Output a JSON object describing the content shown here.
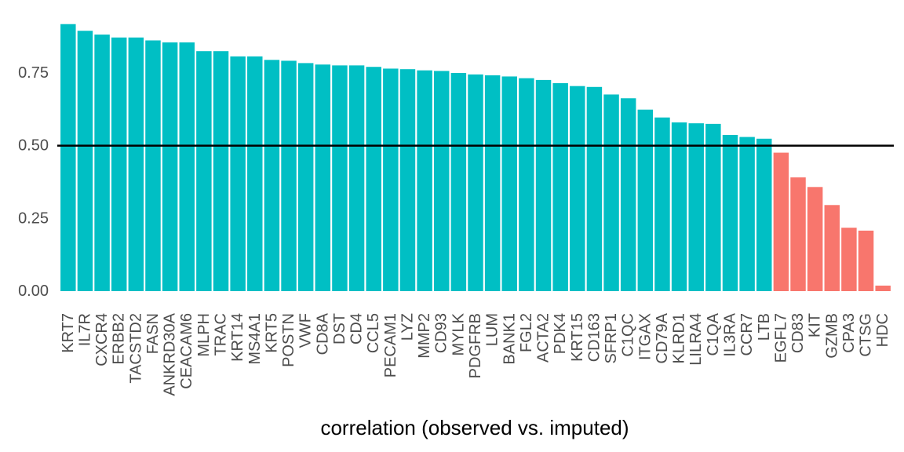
{
  "chart_data": {
    "type": "bar",
    "title": "",
    "xlabel": "correlation (observed vs. imputed)",
    "ylabel": "",
    "ylim": [
      0,
      0.92
    ],
    "yticks": [
      0.0,
      0.25,
      0.5,
      0.75
    ],
    "ytick_labels": [
      "0.00",
      "0.25",
      "0.50",
      "0.75"
    ],
    "reference_line": 0.5,
    "grid": false,
    "legend": "none",
    "colors": {
      "above": "#00BFC4",
      "below": "#F8766D",
      "reference": "#000000"
    },
    "categories": [
      "KRT7",
      "IL7R",
      "CXCR4",
      "ERBB2",
      "TACSTD2",
      "FASN",
      "ANKRD30A",
      "CEACAM6",
      "MLPH",
      "TRAC",
      "KRT14",
      "MS4A1",
      "KRT5",
      "POSTN",
      "VWF",
      "CD8A",
      "DST",
      "CD4",
      "CCL5",
      "PECAM1",
      "LYZ",
      "MMP2",
      "CD93",
      "MYLK",
      "PDGFRB",
      "LUM",
      "BANK1",
      "FGL2",
      "ACTA2",
      "PDK4",
      "KRT15",
      "CD163",
      "SFRP1",
      "C1QC",
      "ITGAX",
      "CD79A",
      "KLRD1",
      "LILRA4",
      "C1QA",
      "IL3RA",
      "CCR7",
      "LTB",
      "EGFL7",
      "CD83",
      "KIT",
      "GZMB",
      "CPA3",
      "CTSG",
      "HDC"
    ],
    "values": [
      0.918,
      0.895,
      0.882,
      0.872,
      0.872,
      0.862,
      0.855,
      0.855,
      0.825,
      0.825,
      0.807,
      0.807,
      0.795,
      0.792,
      0.784,
      0.779,
      0.776,
      0.776,
      0.771,
      0.765,
      0.763,
      0.759,
      0.757,
      0.75,
      0.745,
      0.742,
      0.738,
      0.732,
      0.726,
      0.715,
      0.705,
      0.702,
      0.676,
      0.663,
      0.624,
      0.597,
      0.58,
      0.577,
      0.575,
      0.537,
      0.53,
      0.524,
      0.476,
      0.391,
      0.358,
      0.296,
      0.218,
      0.208,
      0.019
    ]
  }
}
